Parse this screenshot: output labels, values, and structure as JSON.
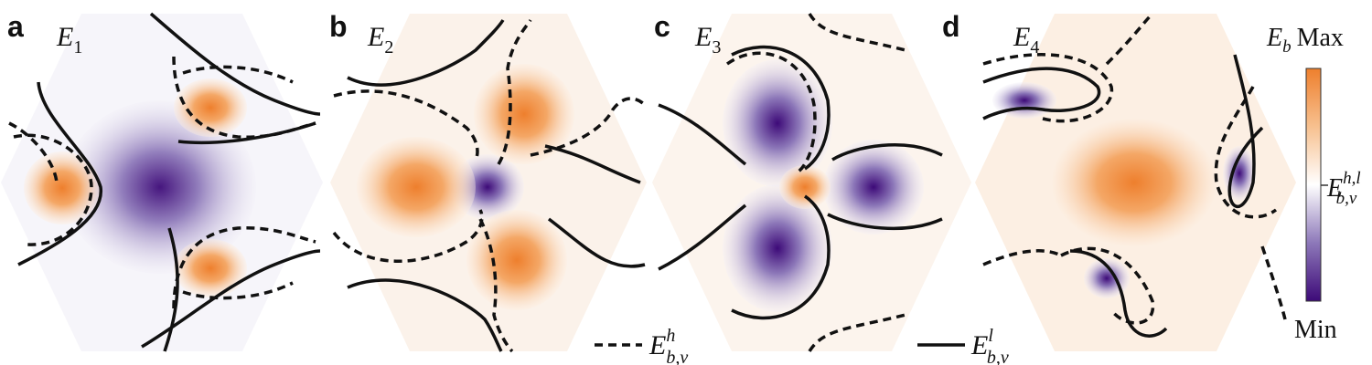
{
  "panels": [
    {
      "letter": "a",
      "title_main": "E",
      "title_sub": "1"
    },
    {
      "letter": "b",
      "title_main": "E",
      "title_sub": "2"
    },
    {
      "letter": "c",
      "title_main": "E",
      "title_sub": "3"
    },
    {
      "letter": "d",
      "title_main": "E",
      "title_sub": "4"
    }
  ],
  "legend": {
    "dashed_main": "E",
    "dashed_sup": "h",
    "dashed_sub": "b,v",
    "solid_main": "E",
    "solid_sup": "l",
    "solid_sub": "b,v"
  },
  "colorbar": {
    "title_main": "E",
    "title_sub": "b",
    "max_label": "Max",
    "min_label": "Min",
    "mid_main": "E",
    "mid_sup": "h,l",
    "mid_sub": "b,v",
    "colors": [
      "#ee7f2d",
      "#f7c08f",
      "#ffffff",
      "#8d78b9",
      "#3d0a78"
    ]
  }
}
